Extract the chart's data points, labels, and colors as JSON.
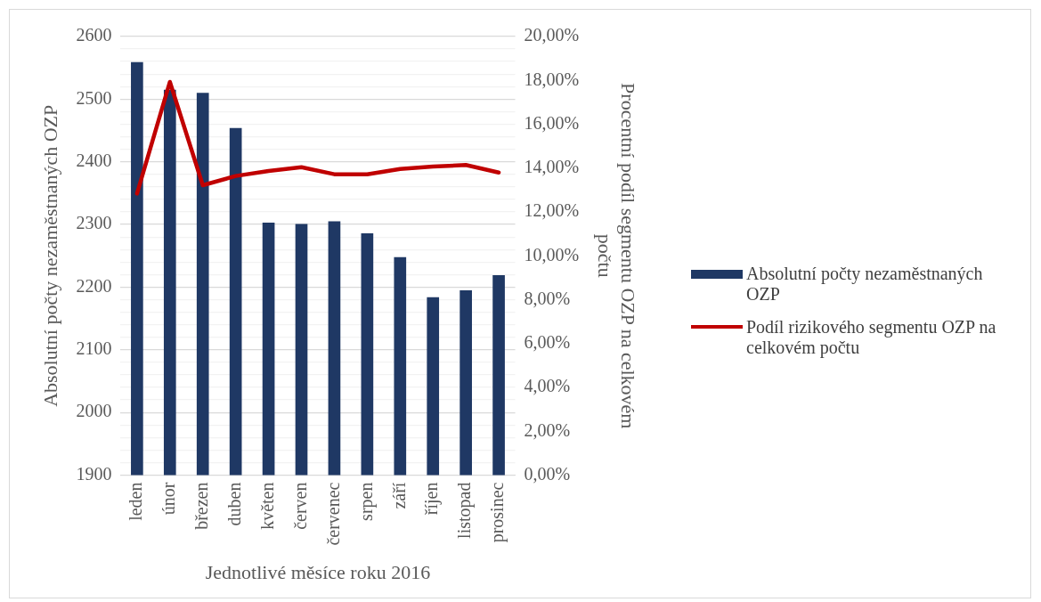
{
  "chart_data": {
    "type": "bar",
    "categories": [
      "leden",
      "únor",
      "březen",
      "duben",
      "květen",
      "červen",
      "červenec",
      "srpen",
      "září",
      "říjen",
      "listopad",
      "prosinec"
    ],
    "series": [
      {
        "name": "Absolutní počty nezaměstnaných OZP",
        "color": "#1f3864",
        "values": [
          2559,
          2515,
          2510,
          2454,
          2303,
          2301,
          2305,
          2286,
          2248,
          2184,
          2195,
          2219
        ]
      },
      {
        "name": "Podíl rizikového segmentu OZP na celkovém počtu",
        "type": "line",
        "axis": "y2",
        "color": "#c00000",
        "values": [
          12.84,
          17.93,
          13.22,
          13.64,
          13.87,
          14.04,
          13.72,
          13.72,
          13.96,
          14.07,
          14.14,
          13.8
        ]
      }
    ],
    "xlabel": "Jednotlivé měsíce roku 2016",
    "ylabel": "Absolutní počty nezaměstnaných OZP",
    "y2label": "Procentní podíl segmentu OZP na celkovém počtu",
    "ylim": [
      1900,
      2600
    ],
    "yticks": [
      1900,
      {
        "value": 1920,
        "label": null
      },
      {
        "value": 1940,
        "label": null
      },
      {
        "value": 1960,
        "label": null
      },
      {
        "value": 1980,
        "label": null
      },
      2000,
      {
        "value": 2020,
        "label": null
      },
      {
        "value": 2040,
        "label": null
      },
      {
        "value": 2060,
        "label": null
      },
      {
        "value": 2080,
        "label": null
      },
      2100,
      {
        "value": 2120,
        "label": null
      },
      {
        "value": 2140,
        "label": null
      },
      {
        "value": 2160,
        "label": null
      },
      {
        "value": 2180,
        "label": null
      },
      2200,
      {
        "value": 2220,
        "label": null
      },
      {
        "value": 2240,
        "label": null
      },
      {
        "value": 2260,
        "label": null
      },
      {
        "value": 2280,
        "label": null
      },
      2300,
      {
        "value": 2320,
        "label": null
      },
      {
        "value": 2340,
        "label": null
      },
      {
        "value": 2360,
        "label": null
      },
      {
        "value": 2380,
        "label": null
      },
      2400,
      {
        "value": 2420,
        "label": null
      },
      {
        "value": 2440,
        "label": null
      },
      {
        "value": 2460,
        "label": null
      },
      {
        "value": 2480,
        "label": null
      },
      2500,
      {
        "value": 2520,
        "label": null
      },
      {
        "value": 2540,
        "label": null
      },
      {
        "value": 2560,
        "label": null
      },
      {
        "value": 2580,
        "label": null
      },
      2600
    ],
    "y2lim": [
      0,
      20
    ],
    "y2ticks": [
      {
        "value": 0,
        "label": "0,00%"
      },
      {
        "value": 2,
        "label": "2,00%"
      },
      {
        "value": 4,
        "label": "4,00%"
      },
      {
        "value": 6,
        "label": "6,00%"
      },
      {
        "value": 8,
        "label": "8,00%"
      },
      {
        "value": 10,
        "label": "10,00%"
      },
      {
        "value": 12,
        "label": "12,00%"
      },
      {
        "value": 14,
        "label": "14,00%"
      },
      {
        "value": 16,
        "label": "16,00%"
      },
      {
        "value": 18,
        "label": "18,00%"
      },
      {
        "value": 20,
        "label": "20,00%"
      }
    ],
    "grid": "y",
    "legend": "right",
    "marker": "none",
    "line_style": "solid"
  }
}
